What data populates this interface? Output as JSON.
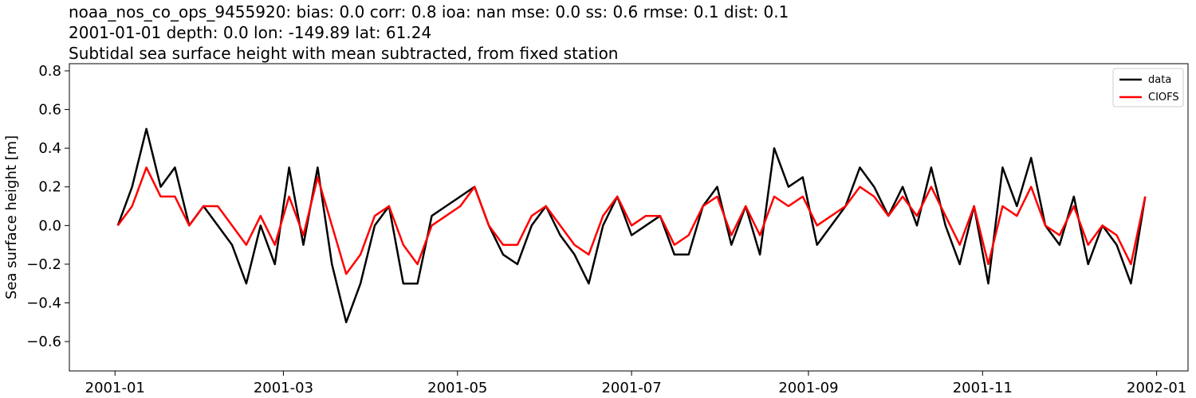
{
  "chart_data": {
    "type": "line",
    "title": [
      "noaa_nos_co_ops_9455920: bias: 0.0  corr: 0.8  ioa: nan  mse: 0.0  ss: 0.6  rmse: 0.1  dist: 0.1",
      "2001-01-01 depth: 0.0 lon: -149.89 lat: 61.24",
      "Subtidal sea surface height with mean subtracted, from fixed station"
    ],
    "ylabel": "Sea surface height [m]",
    "x": [
      "2001-01-02",
      "2001-01-07",
      "2001-01-12",
      "2001-01-17",
      "2001-01-22",
      "2001-01-27",
      "2001-02-01",
      "2001-02-06",
      "2001-02-11",
      "2001-02-16",
      "2001-02-21",
      "2001-02-26",
      "2001-03-03",
      "2001-03-08",
      "2001-03-13",
      "2001-03-18",
      "2001-03-23",
      "2001-03-28",
      "2001-04-02",
      "2001-04-07",
      "2001-04-12",
      "2001-04-17",
      "2001-04-22",
      "2001-04-27",
      "2001-05-02",
      "2001-05-07",
      "2001-05-12",
      "2001-05-17",
      "2001-05-22",
      "2001-05-27",
      "2001-06-01",
      "2001-06-06",
      "2001-06-11",
      "2001-06-16",
      "2001-06-21",
      "2001-06-26",
      "2001-07-01",
      "2001-07-06",
      "2001-07-11",
      "2001-07-16",
      "2001-07-21",
      "2001-07-26",
      "2001-07-31",
      "2001-08-05",
      "2001-08-10",
      "2001-08-15",
      "2001-08-20",
      "2001-08-25",
      "2001-08-30",
      "2001-09-04",
      "2001-09-09",
      "2001-09-14",
      "2001-09-19",
      "2001-09-24",
      "2001-09-29",
      "2001-10-04",
      "2001-10-09",
      "2001-10-14",
      "2001-10-19",
      "2001-10-24",
      "2001-10-29",
      "2001-11-03",
      "2001-11-08",
      "2001-11-13",
      "2001-11-18",
      "2001-11-23",
      "2001-11-28",
      "2001-12-03",
      "2001-12-08",
      "2001-12-13",
      "2001-12-18",
      "2001-12-23",
      "2001-12-28"
    ],
    "series": [
      {
        "name": "data",
        "color": "#000000",
        "values": [
          0.0,
          0.2,
          0.5,
          0.2,
          0.3,
          0.0,
          0.1,
          0.0,
          -0.1,
          -0.3,
          0.0,
          -0.2,
          0.3,
          -0.1,
          0.3,
          -0.2,
          -0.5,
          -0.3,
          0.0,
          0.1,
          -0.3,
          -0.3,
          0.05,
          0.1,
          0.15,
          0.2,
          0.0,
          -0.15,
          -0.2,
          0.0,
          0.1,
          -0.05,
          -0.15,
          -0.3,
          0.0,
          0.15,
          -0.05,
          0.0,
          0.05,
          -0.15,
          -0.15,
          0.1,
          0.2,
          -0.1,
          0.1,
          -0.15,
          0.4,
          0.2,
          0.25,
          -0.1,
          0.0,
          0.1,
          0.3,
          0.2,
          0.05,
          0.2,
          0.0,
          0.3,
          0.0,
          -0.2,
          0.1,
          -0.3,
          0.3,
          0.1,
          0.35,
          0.0,
          -0.1,
          0.15,
          -0.2,
          0.0,
          -0.1,
          -0.3,
          0.15
        ]
      },
      {
        "name": "CIOFS",
        "color": "#ff0000",
        "values": [
          0.0,
          0.1,
          0.3,
          0.15,
          0.15,
          0.0,
          0.1,
          0.1,
          0.0,
          -0.1,
          0.05,
          -0.1,
          0.15,
          -0.05,
          0.25,
          0.0,
          -0.25,
          -0.15,
          0.05,
          0.1,
          -0.1,
          -0.2,
          0.0,
          0.05,
          0.1,
          0.2,
          0.0,
          -0.1,
          -0.1,
          0.05,
          0.1,
          0.0,
          -0.1,
          -0.15,
          0.05,
          0.15,
          0.0,
          0.05,
          0.05,
          -0.1,
          -0.05,
          0.1,
          0.15,
          -0.05,
          0.1,
          -0.05,
          0.15,
          0.1,
          0.15,
          0.0,
          0.05,
          0.1,
          0.2,
          0.15,
          0.05,
          0.15,
          0.05,
          0.2,
          0.05,
          -0.1,
          0.1,
          -0.2,
          0.1,
          0.05,
          0.2,
          0.0,
          -0.05,
          0.1,
          -0.1,
          0.0,
          -0.05,
          -0.2,
          0.15
        ]
      }
    ],
    "xlim": [
      "2000-12-16",
      "2002-01-12"
    ],
    "xticks": [
      {
        "value": "2001-01-01",
        "label": "2001-01"
      },
      {
        "value": "2001-03-01",
        "label": "2001-03"
      },
      {
        "value": "2001-05-01",
        "label": "2001-05"
      },
      {
        "value": "2001-07-01",
        "label": "2001-07"
      },
      {
        "value": "2001-09-01",
        "label": "2001-09"
      },
      {
        "value": "2001-11-01",
        "label": "2001-11"
      },
      {
        "value": "2002-01-01",
        "label": "2002-01"
      }
    ],
    "ylim": [
      -0.752,
      0.837
    ],
    "yticks": [
      {
        "value": -0.6,
        "label": "−0.6"
      },
      {
        "value": -0.4,
        "label": "−0.4"
      },
      {
        "value": -0.2,
        "label": "−0.2"
      },
      {
        "value": 0,
        "label": "0.0"
      },
      {
        "value": 0.2,
        "label": "0.2"
      },
      {
        "value": 0.4,
        "label": "0.4"
      },
      {
        "value": 0.6,
        "label": "0.6"
      },
      {
        "value": 0.8,
        "label": "0.8"
      }
    ],
    "legend": "upper right"
  }
}
